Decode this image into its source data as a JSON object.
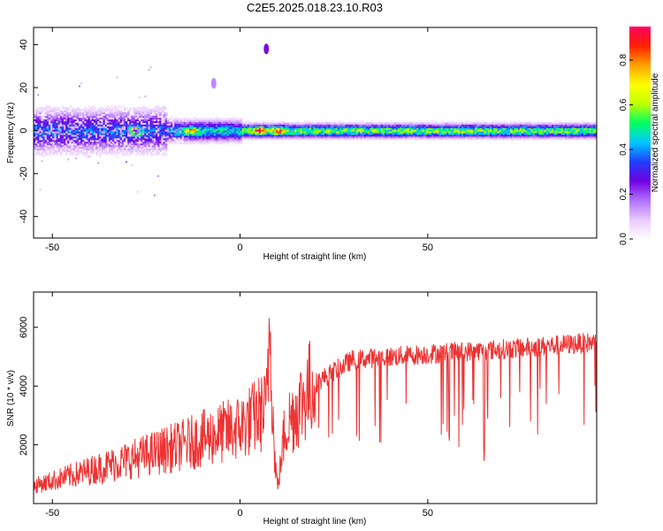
{
  "title": "C2E5.2025.018.23.10.R03",
  "chart_data": [
    {
      "type": "heatmap",
      "xlabel": "Height of straight line (km)",
      "ylabel": "Frequency (Hz)",
      "xlim": [
        -55,
        95
      ],
      "ylim": [
        -50,
        48
      ],
      "xticks": [
        -50,
        0,
        50
      ],
      "yticks": [
        -40,
        -20,
        0,
        20,
        40
      ],
      "colorbar": {
        "label": "Normalized spectral amplitude",
        "range": [
          0,
          0.95
        ],
        "ticks": [
          "0.0",
          "0.2",
          "0.4",
          "0.6",
          "0.8"
        ],
        "colormap": [
          "#ffffff",
          "#e8c8ff",
          "#b070ff",
          "#7000e0",
          "#2040ff",
          "#00c8ff",
          "#00ff60",
          "#c0ff00",
          "#ffff00",
          "#ffa000",
          "#ff2000",
          "#ff0060"
        ]
      },
      "band": {
        "center_hz": 0,
        "segments": [
          {
            "x": [
              -55,
              -20
            ],
            "halfwidth_hz": 12,
            "amplitude": 0.35
          },
          {
            "x": [
              -20,
              0
            ],
            "halfwidth_hz": 6,
            "amplitude": 0.45
          },
          {
            "x": [
              0,
              95
            ],
            "halfwidth_hz": 4,
            "amplitude": 0.55
          }
        ],
        "peaks": [
          {
            "x": 5,
            "amplitude": 0.9
          },
          {
            "x": -28,
            "amplitude": 0.75
          },
          {
            "x": -13,
            "amplitude": 0.75
          },
          {
            "x": 10,
            "amplitude": 0.8
          }
        ],
        "isolated_spots": [
          {
            "x": 7,
            "y": 38,
            "amplitude": 0.25
          },
          {
            "x": -7,
            "y": 22,
            "amplitude": 0.15
          }
        ]
      }
    },
    {
      "type": "line",
      "xlabel": "Height of straight line (km)",
      "ylabel": "SNR (10 * v/v)",
      "xlim": [
        -55,
        95
      ],
      "ylim": [
        0,
        7200
      ],
      "xticks": [
        -50,
        0,
        50
      ],
      "yticks": [
        2000,
        4000,
        6000
      ],
      "series_color": "#ee3333",
      "trend": [
        {
          "x": -55,
          "y": 600
        },
        {
          "x": -35,
          "y": 1300
        },
        {
          "x": -15,
          "y": 2000
        },
        {
          "x": 0,
          "y": 2600
        },
        {
          "x": 7,
          "y": 3200
        },
        {
          "x": 8,
          "y": 6600
        },
        {
          "x": 9,
          "y": 2000
        },
        {
          "x": 10,
          "y": 500
        },
        {
          "x": 12,
          "y": 2600
        },
        {
          "x": 20,
          "y": 4200
        },
        {
          "x": 30,
          "y": 5000
        },
        {
          "x": 50,
          "y": 5200
        },
        {
          "x": 75,
          "y": 5400
        },
        {
          "x": 95,
          "y": 5600
        }
      ]
    }
  ]
}
